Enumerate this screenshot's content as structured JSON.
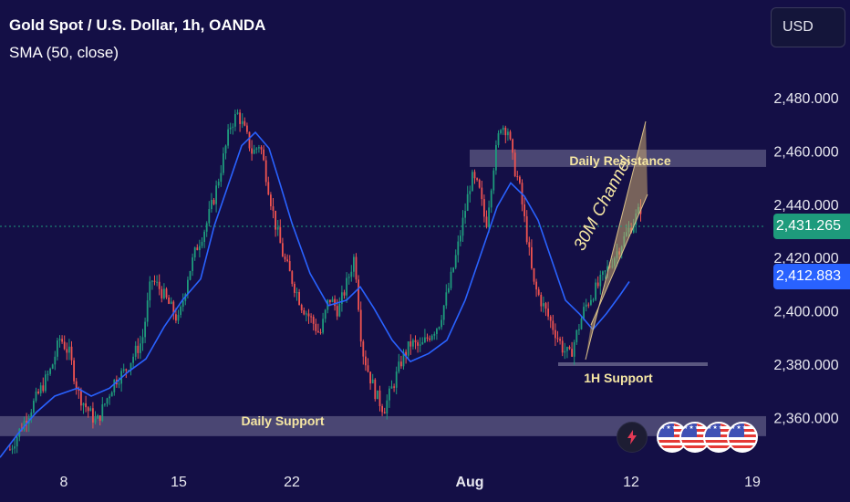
{
  "header": {
    "title": "Gold Spot / U.S. Dollar, 1h, OANDA",
    "indicator": "SMA (50, close)"
  },
  "toolbar": {
    "currency_label": "USD"
  },
  "price_labels": {
    "last_price": "2,431.265",
    "sma_value": "2,412.883"
  },
  "colors": {
    "background": "#140f46",
    "bullish": "#1e9b7c",
    "bearish": "#ef5350",
    "sma_line": "#2962ff",
    "zone_fill": "#b0b0c8",
    "channel_fill": "#c8a86e",
    "annotation_text": "#f5e6a3"
  },
  "badges": {
    "lightning_icon": "lightning-icon",
    "flag_icon": "us-flag-icon",
    "flag_count": 4
  },
  "chart_data": {
    "type": "candlestick",
    "title": "Gold Spot / U.S. Dollar, 1h, OANDA",
    "x_tick_labels": [
      "8",
      "15",
      "22",
      "Aug",
      "12",
      "19"
    ],
    "y_tick_labels": [
      "2,480.000",
      "2,460.000",
      "2,440.000",
      "2,420.000",
      "2,400.000",
      "2,380.000",
      "2,360.000"
    ],
    "ylim": [
      2343,
      2493
    ],
    "last_price": 2431.265,
    "sma": {
      "name": "SMA (50, close)",
      "value": 2412.883,
      "x": [
        0,
        20,
        40,
        60,
        85,
        100,
        120,
        140,
        160,
        180,
        200,
        220,
        235,
        250,
        265,
        280,
        295,
        305,
        320,
        340,
        360,
        380,
        395,
        410,
        430,
        450,
        470,
        490,
        510,
        530,
        545,
        560,
        575,
        590,
        605,
        620,
        635,
        650,
        665,
        680,
        690
      ],
      "y": [
        2345,
        2354,
        2362,
        2368,
        2371,
        2368,
        2371,
        2377,
        2382,
        2394,
        2404,
        2412,
        2432,
        2447,
        2462,
        2467,
        2461,
        2450,
        2433,
        2414,
        2402,
        2404,
        2409,
        2401,
        2389,
        2381,
        2384,
        2389,
        2404,
        2424,
        2439,
        2448,
        2443,
        2434,
        2419,
        2404,
        2399,
        2393,
        2399,
        2406,
        2411
      ]
    },
    "close_path": {
      "x": [
        10,
        25,
        40,
        55,
        65,
        75,
        85,
        95,
        105,
        115,
        125,
        135,
        145,
        155,
        165,
        175,
        185,
        195,
        205,
        215,
        225,
        235,
        245,
        252,
        260,
        268,
        276,
        284,
        292,
        300,
        310,
        320,
        330,
        340,
        350,
        360,
        370,
        380,
        388,
        396,
        404,
        412,
        420,
        430,
        440,
        450,
        460,
        470,
        480,
        490,
        500,
        508,
        516,
        524,
        532,
        540,
        548,
        556,
        562,
        568,
        576,
        584,
        592,
        600,
        608,
        616,
        624,
        632,
        640,
        648,
        656,
        664,
        672,
        680,
        688,
        696,
        704
      ],
      "y": [
        2348,
        2358,
        2368,
        2378,
        2390,
        2384,
        2369,
        2363,
        2358,
        2366,
        2374,
        2377,
        2383,
        2389,
        2412,
        2408,
        2402,
        2396,
        2413,
        2424,
        2432,
        2444,
        2459,
        2470,
        2474,
        2467,
        2459,
        2463,
        2449,
        2434,
        2420,
        2411,
        2402,
        2397,
        2391,
        2405,
        2400,
        2411,
        2421,
        2386,
        2376,
        2368,
        2363,
        2372,
        2382,
        2388,
        2386,
        2391,
        2395,
        2407,
        2422,
        2436,
        2450,
        2446,
        2432,
        2454,
        2470,
        2468,
        2455,
        2448,
        2430,
        2410,
        2404,
        2398,
        2392,
        2386,
        2383,
        2392,
        2401,
        2406,
        2410,
        2415,
        2420,
        2425,
        2430,
        2435,
        2440
      ]
    },
    "zones": [
      {
        "label": "Daily Resistance",
        "y_low": 2454,
        "y_high": 2460.5
      },
      {
        "label": "Daily Support",
        "y_low": 2353,
        "y_high": 2360.5
      },
      {
        "label": "1H Support",
        "level": 2380
      }
    ],
    "channel": {
      "label": "30M Channel"
    },
    "grid": false,
    "legend": "top-left"
  }
}
